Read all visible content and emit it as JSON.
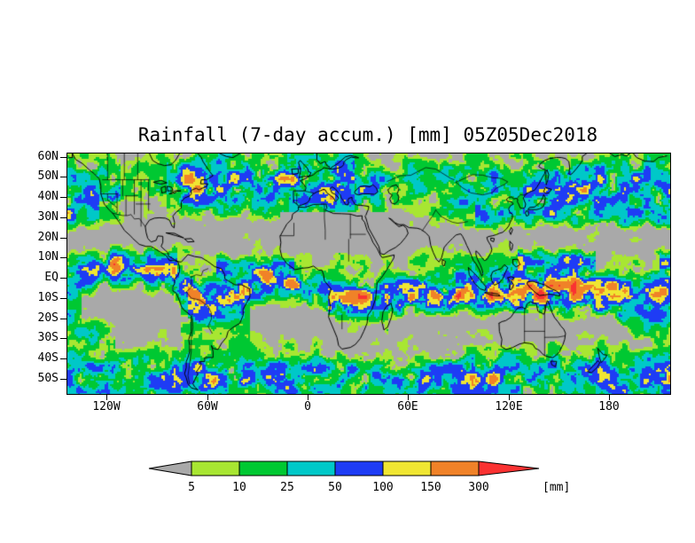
{
  "title": "Rainfall (7-day accum.) [mm] 05Z05Dec2018",
  "chart_data": {
    "type": "heatmap",
    "title": "Rainfall (7-day accum.) [mm] 05Z05Dec2018",
    "variable": "Rainfall (7-day accumulation)",
    "units": "mm",
    "valid_time": "05Z05Dec2018",
    "projection": "equirectangular global map with coastlines and country borders",
    "lon_range": [
      -144,
      216
    ],
    "lat_range": [
      -57,
      62
    ],
    "grid": "off",
    "legend_position": "bottom center, horizontal arrow colorbar",
    "x_ticks": [
      {
        "label": "120W",
        "lon": -120
      },
      {
        "label": "60W",
        "lon": -60
      },
      {
        "label": "0",
        "lon": 0
      },
      {
        "label": "60E",
        "lon": 60
      },
      {
        "label": "120E",
        "lon": 120
      },
      {
        "label": "180",
        "lon": 180
      }
    ],
    "y_ticks": [
      {
        "label": "60N",
        "lat": 60
      },
      {
        "label": "50N",
        "lat": 50
      },
      {
        "label": "40N",
        "lat": 40
      },
      {
        "label": "30N",
        "lat": 30
      },
      {
        "label": "20N",
        "lat": 20
      },
      {
        "label": "10N",
        "lat": 10
      },
      {
        "label": "EQ",
        "lat": 0
      },
      {
        "label": "10S",
        "lat": -10
      },
      {
        "label": "20S",
        "lat": -20
      },
      {
        "label": "30S",
        "lat": -30
      },
      {
        "label": "40S",
        "lat": -40
      },
      {
        "label": "50S",
        "lat": -50
      }
    ],
    "legend": {
      "unit": "[mm]",
      "thresholds": [
        5,
        10,
        25,
        50,
        100,
        150,
        300
      ],
      "labels": [
        "5",
        "10",
        "25",
        "50",
        "100",
        "150",
        "300"
      ],
      "palette": [
        {
          "range": "< 5",
          "color": "#a9a9a9"
        },
        {
          "range": "5-10",
          "color": "#a8e632"
        },
        {
          "range": "10-25",
          "color": "#00c832"
        },
        {
          "range": "25-50",
          "color": "#00c8c8"
        },
        {
          "range": "50-100",
          "color": "#1e3cf5"
        },
        {
          "range": "100-150",
          "color": "#f0e632"
        },
        {
          "range": "150-300",
          "color": "#f08228"
        },
        {
          "range": "> 300",
          "color": "#fa3232"
        }
      ]
    },
    "visible_features": [
      "ITCZ band of heavy rain (blue/orange/red) across equatorial Pacific, Amazon, central Africa, Indian Ocean and Maritime Continent",
      "SPCZ diagonal rain band in the southwest Pacific",
      "Mid-latitude storm-track rain bands near 45-55N and 40-55S",
      "Dry gray subtropical zones over eastern ocean basins, Sahara, Arabia and central Australia"
    ]
  }
}
